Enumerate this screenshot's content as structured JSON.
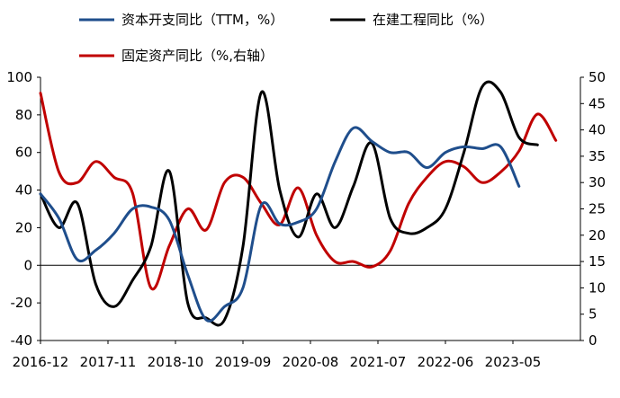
{
  "chart_data": {
    "type": "line",
    "title": "",
    "x": [
      "2016-12",
      "2017-03",
      "2017-06",
      "2017-09",
      "2017-12",
      "2018-03",
      "2018-06",
      "2018-09",
      "2018-12",
      "2019-03",
      "2019-06",
      "2019-09",
      "2019-12",
      "2020-03",
      "2020-06",
      "2020-09",
      "2020-12",
      "2021-03",
      "2021-06",
      "2021-09",
      "2021-12",
      "2022-03",
      "2022-06",
      "2022-09",
      "2022-12",
      "2023-03",
      "2023-06",
      "2023-09",
      "2023-12",
      "2024-03"
    ],
    "x_tick_labels": [
      "2016-12",
      "2017-11",
      "2018-10",
      "2019-09",
      "2020-08",
      "2021-07",
      "2022-06",
      "2023-05"
    ],
    "x_tick_positions": [
      "2016-12",
      "2017-11",
      "2018-10",
      "2019-09",
      "2020-08",
      "2021-07",
      "2022-06",
      "2023-05"
    ],
    "y_left": {
      "ylim": [
        -40,
        100
      ],
      "ticks": [
        "100",
        "80",
        "60",
        "40",
        "20",
        "0",
        "-20",
        "-40"
      ]
    },
    "y_right": {
      "ylim": [
        0,
        50
      ],
      "ticks": [
        "50",
        "45",
        "40",
        "35",
        "30",
        "25",
        "20",
        "15",
        "10",
        "5",
        "0"
      ]
    },
    "series": [
      {
        "name": "资本开支同比（TTM，%）",
        "color": "#1f4e8c",
        "axis": "left",
        "values": [
          38,
          25,
          3,
          8,
          17,
          30,
          31,
          24,
          -5,
          -29,
          -22,
          -12,
          32,
          22,
          23,
          30,
          55,
          73,
          66,
          60,
          60,
          52,
          60,
          63,
          62,
          63,
          42,
          null,
          null,
          null
        ]
      },
      {
        "name": "在建工程同比（%）",
        "color": "#000000",
        "axis": "left",
        "values": [
          38,
          20,
          33,
          -10,
          -22,
          -8,
          10,
          50,
          -20,
          -28,
          -29,
          10,
          92,
          40,
          15,
          38,
          20,
          42,
          65,
          25,
          17,
          20,
          30,
          60,
          95,
          92,
          68,
          64,
          null,
          null
        ]
      },
      {
        "name": "固定资产同比（%,右轴）",
        "color": "#c00000",
        "axis": "right",
        "values": [
          47,
          32,
          30,
          34,
          31,
          28,
          10,
          18,
          25,
          21,
          30,
          31,
          26,
          22,
          29,
          20,
          15,
          15,
          14,
          17,
          26,
          31,
          34,
          33,
          30,
          32,
          36,
          43,
          38,
          null
        ]
      }
    ],
    "legend": "top"
  }
}
